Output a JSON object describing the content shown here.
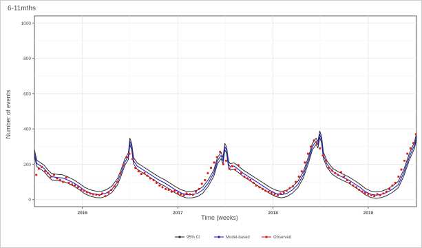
{
  "chart_data": {
    "type": "line",
    "title": "6-11mths",
    "xlabel": "Time (weeks)",
    "ylabel": "Number of events",
    "xlim": [
      "2015-07-01",
      "2019-07-05"
    ],
    "ylim": [
      -40,
      1040
    ],
    "yticks": [
      0,
      200,
      400,
      600,
      800,
      1000
    ],
    "xticks": [
      {
        "label": "2016",
        "date": "2016-01-01"
      },
      {
        "label": "2017",
        "date": "2017-01-01"
      },
      {
        "label": "2018",
        "date": "2018-01-01"
      },
      {
        "label": "2019",
        "date": "2019-01-01"
      }
    ],
    "grid": true,
    "legend": {
      "position": "bottom",
      "items": [
        {
          "label": "95% CI",
          "color": "#2b2b2b"
        },
        {
          "label": "Model-based",
          "color": "#2020c8"
        },
        {
          "label": "Observed",
          "color": "#e02020"
        }
      ]
    },
    "model_series": [
      [
        "2015-07-01",
        265
      ],
      [
        "2015-07-10",
        205
      ],
      [
        "2015-07-25",
        190
      ],
      [
        "2015-08-08",
        175
      ],
      [
        "2015-08-22",
        150
      ],
      [
        "2015-09-05",
        130
      ],
      [
        "2015-09-26",
        125
      ],
      [
        "2015-10-17",
        122
      ],
      [
        "2015-11-07",
        110
      ],
      [
        "2015-11-28",
        95
      ],
      [
        "2015-12-19",
        75
      ],
      [
        "2016-01-09",
        52
      ],
      [
        "2016-01-30",
        38
      ],
      [
        "2016-02-20",
        30
      ],
      [
        "2016-03-12",
        28
      ],
      [
        "2016-04-02",
        38
      ],
      [
        "2016-04-23",
        58
      ],
      [
        "2016-05-14",
        100
      ],
      [
        "2016-05-28",
        150
      ],
      [
        "2016-06-11",
        210
      ],
      [
        "2016-06-25",
        245
      ],
      [
        "2016-07-01",
        330
      ],
      [
        "2016-07-08",
        300
      ],
      [
        "2016-07-15",
        220
      ],
      [
        "2016-07-29",
        190
      ],
      [
        "2016-08-19",
        170
      ],
      [
        "2016-09-09",
        150
      ],
      [
        "2016-09-30",
        130
      ],
      [
        "2016-10-21",
        110
      ],
      [
        "2016-11-11",
        95
      ],
      [
        "2016-12-02",
        75
      ],
      [
        "2016-12-23",
        55
      ],
      [
        "2017-01-13",
        38
      ],
      [
        "2017-02-03",
        28
      ],
      [
        "2017-02-24",
        28
      ],
      [
        "2017-03-17",
        35
      ],
      [
        "2017-04-07",
        55
      ],
      [
        "2017-04-28",
        95
      ],
      [
        "2017-05-19",
        150
      ],
      [
        "2017-06-02",
        220
      ],
      [
        "2017-06-16",
        250
      ],
      [
        "2017-06-23",
        220
      ],
      [
        "2017-06-30",
        300
      ],
      [
        "2017-07-07",
        280
      ],
      [
        "2017-07-14",
        200
      ],
      [
        "2017-07-21",
        185
      ],
      [
        "2017-08-04",
        190
      ],
      [
        "2017-08-18",
        175
      ],
      [
        "2017-09-08",
        150
      ],
      [
        "2017-09-29",
        130
      ],
      [
        "2017-10-20",
        110
      ],
      [
        "2017-11-10",
        90
      ],
      [
        "2017-12-01",
        70
      ],
      [
        "2017-12-22",
        50
      ],
      [
        "2018-01-12",
        35
      ],
      [
        "2018-02-02",
        28
      ],
      [
        "2018-02-23",
        35
      ],
      [
        "2018-03-16",
        55
      ],
      [
        "2018-04-06",
        85
      ],
      [
        "2018-04-27",
        140
      ],
      [
        "2018-05-18",
        230
      ],
      [
        "2018-06-01",
        300
      ],
      [
        "2018-06-15",
        330
      ],
      [
        "2018-06-22",
        310
      ],
      [
        "2018-06-29",
        370
      ],
      [
        "2018-07-06",
        340
      ],
      [
        "2018-07-13",
        250
      ],
      [
        "2018-07-27",
        200
      ],
      [
        "2018-08-17",
        160
      ],
      [
        "2018-09-07",
        140
      ],
      [
        "2018-09-28",
        125
      ],
      [
        "2018-10-19",
        110
      ],
      [
        "2018-11-09",
        90
      ],
      [
        "2018-11-30",
        70
      ],
      [
        "2018-12-21",
        45
      ],
      [
        "2019-01-11",
        30
      ],
      [
        "2019-02-01",
        25
      ],
      [
        "2019-02-22",
        30
      ],
      [
        "2019-03-15",
        42
      ],
      [
        "2019-04-05",
        60
      ],
      [
        "2019-04-26",
        85
      ],
      [
        "2019-05-17",
        150
      ],
      [
        "2019-06-07",
        240
      ],
      [
        "2019-06-28",
        310
      ],
      [
        "2019-07-05",
        360
      ]
    ],
    "ci_half_width": 18,
    "observed": [
      [
        "2015-07-08",
        140
      ],
      [
        "2015-07-18",
        175
      ],
      [
        "2015-07-29",
        185
      ],
      [
        "2015-08-10",
        160
      ],
      [
        "2015-08-22",
        150
      ],
      [
        "2015-09-02",
        130
      ],
      [
        "2015-09-14",
        140
      ],
      [
        "2015-09-26",
        120
      ],
      [
        "2015-10-07",
        110
      ],
      [
        "2015-10-19",
        100
      ],
      [
        "2015-10-31",
        125
      ],
      [
        "2015-11-10",
        95
      ],
      [
        "2015-11-22",
        85
      ],
      [
        "2015-12-03",
        80
      ],
      [
        "2015-12-15",
        70
      ],
      [
        "2015-12-27",
        55
      ],
      [
        "2016-01-07",
        50
      ],
      [
        "2016-01-19",
        42
      ],
      [
        "2016-01-31",
        35
      ],
      [
        "2016-02-11",
        30
      ],
      [
        "2016-02-23",
        28
      ],
      [
        "2016-03-06",
        25
      ],
      [
        "2016-03-17",
        35
      ],
      [
        "2016-03-29",
        20
      ],
      [
        "2016-04-10",
        40
      ],
      [
        "2016-04-21",
        55
      ],
      [
        "2016-05-03",
        75
      ],
      [
        "2016-05-14",
        100
      ],
      [
        "2016-05-26",
        150
      ],
      [
        "2016-06-06",
        195
      ],
      [
        "2016-06-18",
        240
      ],
      [
        "2016-06-29",
        260
      ],
      [
        "2016-07-11",
        230
      ],
      [
        "2016-07-22",
        180
      ],
      [
        "2016-08-03",
        160
      ],
      [
        "2016-08-14",
        145
      ],
      [
        "2016-08-26",
        150
      ],
      [
        "2016-09-06",
        135
      ],
      [
        "2016-09-18",
        120
      ],
      [
        "2016-09-30",
        110
      ],
      [
        "2016-10-11",
        95
      ],
      [
        "2016-10-23",
        80
      ],
      [
        "2016-11-03",
        70
      ],
      [
        "2016-11-15",
        60
      ],
      [
        "2016-11-27",
        55
      ],
      [
        "2016-12-08",
        45
      ],
      [
        "2016-12-20",
        50
      ],
      [
        "2017-01-01",
        38
      ],
      [
        "2017-01-12",
        30
      ],
      [
        "2017-01-24",
        25
      ],
      [
        "2017-02-04",
        35
      ],
      [
        "2017-02-16",
        30
      ],
      [
        "2017-02-28",
        28
      ],
      [
        "2017-03-11",
        45
      ],
      [
        "2017-03-23",
        60
      ],
      [
        "2017-04-03",
        90
      ],
      [
        "2017-04-15",
        110
      ],
      [
        "2017-04-26",
        150
      ],
      [
        "2017-05-08",
        180
      ],
      [
        "2017-05-20",
        210
      ],
      [
        "2017-05-31",
        240
      ],
      [
        "2017-06-12",
        270
      ],
      [
        "2017-06-24",
        200
      ],
      [
        "2017-07-05",
        220
      ],
      [
        "2017-07-17",
        175
      ],
      [
        "2017-07-28",
        190
      ],
      [
        "2017-08-09",
        170
      ],
      [
        "2017-08-21",
        195
      ],
      [
        "2017-09-01",
        150
      ],
      [
        "2017-09-13",
        130
      ],
      [
        "2017-09-25",
        120
      ],
      [
        "2017-10-06",
        110
      ],
      [
        "2017-10-18",
        95
      ],
      [
        "2017-10-29",
        80
      ],
      [
        "2017-11-10",
        70
      ],
      [
        "2017-11-22",
        60
      ],
      [
        "2017-12-03",
        50
      ],
      [
        "2017-12-15",
        45
      ],
      [
        "2017-12-26",
        38
      ],
      [
        "2018-01-07",
        30
      ],
      [
        "2018-01-19",
        25
      ],
      [
        "2018-01-30",
        35
      ],
      [
        "2018-02-11",
        40
      ],
      [
        "2018-02-22",
        50
      ],
      [
        "2018-03-06",
        65
      ],
      [
        "2018-03-18",
        75
      ],
      [
        "2018-03-29",
        100
      ],
      [
        "2018-04-10",
        130
      ],
      [
        "2018-04-21",
        160
      ],
      [
        "2018-05-03",
        210
      ],
      [
        "2018-05-15",
        260
      ],
      [
        "2018-05-26",
        300
      ],
      [
        "2018-06-07",
        335
      ],
      [
        "2018-06-18",
        320
      ],
      [
        "2018-06-30",
        290
      ],
      [
        "2018-07-11",
        250
      ],
      [
        "2018-07-23",
        220
      ],
      [
        "2018-08-03",
        180
      ],
      [
        "2018-08-15",
        165
      ],
      [
        "2018-08-27",
        150
      ],
      [
        "2018-09-07",
        140
      ],
      [
        "2018-09-19",
        155
      ],
      [
        "2018-09-30",
        130
      ],
      [
        "2018-10-12",
        110
      ],
      [
        "2018-10-23",
        95
      ],
      [
        "2018-11-04",
        80
      ],
      [
        "2018-11-16",
        70
      ],
      [
        "2018-11-27",
        55
      ],
      [
        "2018-12-09",
        45
      ],
      [
        "2018-12-20",
        38
      ],
      [
        "2019-01-01",
        30
      ],
      [
        "2019-01-13",
        25
      ],
      [
        "2019-01-24",
        20
      ],
      [
        "2019-02-05",
        30
      ],
      [
        "2019-02-16",
        25
      ],
      [
        "2019-02-28",
        35
      ],
      [
        "2019-03-12",
        45
      ],
      [
        "2019-03-23",
        60
      ],
      [
        "2019-04-04",
        80
      ],
      [
        "2019-04-15",
        95
      ],
      [
        "2019-04-27",
        130
      ],
      [
        "2019-05-08",
        170
      ],
      [
        "2019-05-20",
        220
      ],
      [
        "2019-05-31",
        260
      ],
      [
        "2019-06-12",
        290
      ],
      [
        "2019-06-23",
        320
      ],
      [
        "2019-07-03",
        370
      ]
    ]
  }
}
